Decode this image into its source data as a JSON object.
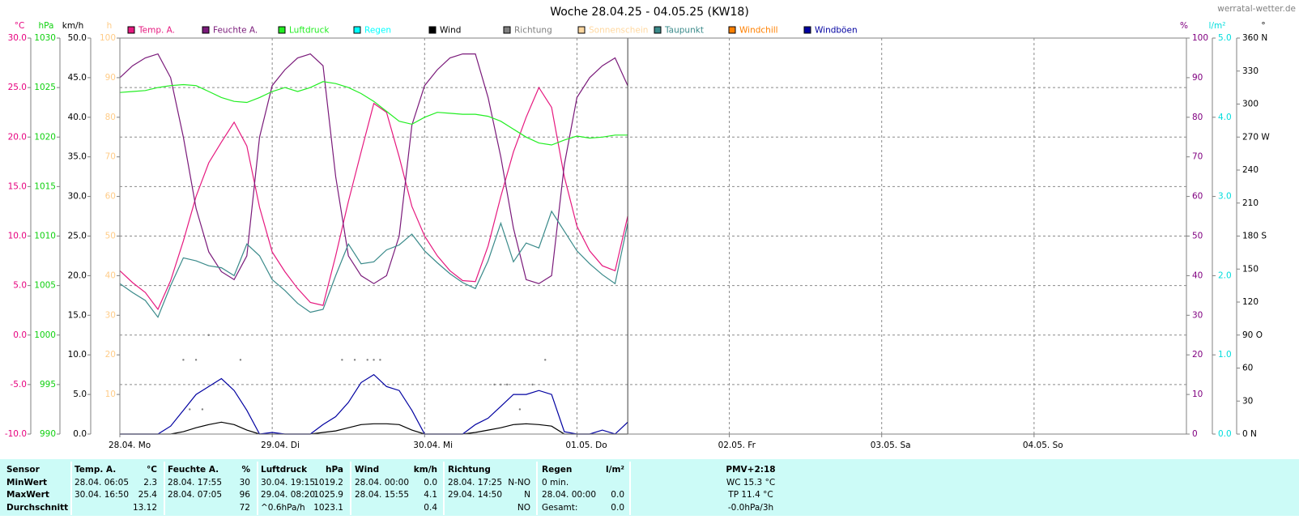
{
  "header": {
    "title": "Woche 28.04.25 - 04.05.25 (KW18)",
    "site": "werratal-wetter.de"
  },
  "chart_data": {
    "type": "line",
    "grid": true,
    "xlim": [
      0,
      168
    ],
    "xticks": [
      {
        "value": 0,
        "label": "28.04.  Mo"
      },
      {
        "value": 24,
        "label": "29.04.  Di"
      },
      {
        "value": 48,
        "label": "30.04.  Mi"
      },
      {
        "value": 72,
        "label": "01.05.  Do"
      },
      {
        "value": 96,
        "label": "02.05.  Fr"
      },
      {
        "value": 120,
        "label": "03.05.  Sa"
      },
      {
        "value": 144,
        "label": "04.05.  So"
      }
    ],
    "axes": [
      {
        "label": "°C",
        "color": "#e6007e",
        "lim": [
          -10,
          30
        ],
        "ticks": [
          {
            "value": 30,
            "label": "30.0"
          },
          {
            "value": 25,
            "label": "25.0"
          },
          {
            "value": 20,
            "label": "20.0"
          },
          {
            "value": 15,
            "label": "15.0"
          },
          {
            "value": 10,
            "label": "10.0"
          },
          {
            "value": 5,
            "label": "5.0"
          },
          {
            "value": 0,
            "label": "0.0"
          },
          {
            "value": -5,
            "label": "-5.0"
          },
          {
            "value": -10,
            "label": "-10.0"
          }
        ]
      },
      {
        "label": "hPa",
        "color": "#10d010",
        "lim": [
          990,
          1030
        ],
        "ticks": [
          1030,
          1025,
          1020,
          1015,
          1010,
          1005,
          1000,
          995,
          990
        ]
      },
      {
        "label": "km/h",
        "color": "#000000",
        "lim": [
          0,
          50
        ],
        "ticks": [
          {
            "value": 50,
            "label": "50.0"
          },
          {
            "value": 45,
            "label": "45.0"
          },
          {
            "value": 40,
            "label": "40.0"
          },
          {
            "value": 35,
            "label": "35.0"
          },
          {
            "value": 30,
            "label": "30.0"
          },
          {
            "value": 25,
            "label": "25.0"
          },
          {
            "value": 20,
            "label": "20.0"
          },
          {
            "value": 15,
            "label": "15.0"
          },
          {
            "value": 10,
            "label": "10.0"
          },
          {
            "value": 5,
            "label": "5.0"
          },
          {
            "value": 0,
            "label": "0.0"
          }
        ]
      },
      {
        "label": "h",
        "color": "#ffcc88",
        "lim": [
          0,
          100
        ],
        "ticks": [
          100,
          90,
          80,
          70,
          60,
          50,
          40,
          30,
          20,
          10
        ]
      },
      {
        "label": "%",
        "color": "#800080",
        "lim": [
          0,
          100
        ],
        "ticks": [
          100,
          90,
          80,
          70,
          60,
          50,
          40,
          30,
          20,
          10,
          0
        ]
      },
      {
        "label": "l/m²",
        "color": "#00dddd",
        "lim": [
          0,
          5
        ],
        "ticks": [
          {
            "value": 5,
            "label": "5.0"
          },
          {
            "value": 4,
            "label": "4.0"
          },
          {
            "value": 3,
            "label": "3.0"
          },
          {
            "value": 2,
            "label": "2.0"
          },
          {
            "value": 1,
            "label": "1.0"
          },
          {
            "value": 0,
            "label": "0.0"
          }
        ]
      },
      {
        "label": "°",
        "color": "#000000",
        "lim": [
          0,
          360
        ],
        "ticks": [
          {
            "value": 360,
            "label": "360 N"
          },
          330,
          300,
          {
            "value": 270,
            "label": "270 W"
          },
          240,
          210,
          {
            "value": 180,
            "label": "180 S"
          },
          150,
          120,
          {
            "value": 90,
            "label": "90 O"
          },
          60,
          30,
          {
            "value": 0,
            "label": "0 N"
          }
        ]
      }
    ],
    "x": [
      0,
      2,
      4,
      6,
      8,
      10,
      12,
      14,
      16,
      18,
      20,
      22,
      24,
      26,
      28,
      30,
      32,
      34,
      36,
      38,
      40,
      42,
      44,
      46,
      48,
      50,
      52,
      54,
      56,
      58,
      60,
      62,
      64,
      66,
      68,
      70,
      72,
      74,
      76,
      78,
      80
    ],
    "series": [
      {
        "name": "Temp. A.",
        "color": "#e6197f",
        "axis": "°C",
        "values": [
          6.5,
          5.3,
          4.3,
          2.6,
          5.5,
          9.5,
          14.0,
          17.4,
          19.5,
          21.5,
          19.1,
          12.9,
          8.4,
          6.4,
          4.7,
          3.3,
          3.0,
          8.0,
          13.5,
          18.5,
          23.4,
          22.5,
          18.0,
          13.0,
          10.0,
          8.0,
          6.5,
          5.5,
          5.4,
          9.0,
          14.0,
          18.5,
          22.0,
          25.0,
          23.0,
          16.0,
          11.0,
          8.5,
          7.0,
          6.5,
          12.0
        ]
      },
      {
        "name": "Feuchte A.",
        "color": "#7a1a7a",
        "axis": "%",
        "values": [
          90,
          93,
          95,
          96,
          90,
          75,
          57,
          46,
          41,
          39,
          45,
          75,
          88,
          92,
          95,
          96,
          93,
          65,
          45,
          40,
          38,
          40,
          50,
          78,
          88,
          92,
          95,
          96,
          96,
          85,
          70,
          52,
          39,
          38,
          40,
          68,
          85,
          90,
          93,
          95,
          88
        ]
      },
      {
        "name": "Luftdruck",
        "color": "#22ee22",
        "axis": "hPa",
        "values": [
          1024.5,
          1024.6,
          1024.7,
          1025.0,
          1025.2,
          1025.3,
          1025.2,
          1024.6,
          1024.0,
          1023.6,
          1023.5,
          1024.0,
          1024.6,
          1025.0,
          1024.6,
          1025.0,
          1025.6,
          1025.4,
          1025.0,
          1024.4,
          1023.6,
          1022.6,
          1021.6,
          1021.3,
          1022.0,
          1022.5,
          1022.4,
          1022.3,
          1022.3,
          1022.1,
          1021.6,
          1020.8,
          1020.0,
          1019.4,
          1019.2,
          1019.7,
          1020.1,
          1019.9,
          1020.0,
          1020.2,
          1020.2
        ]
      },
      {
        "name": "Regen",
        "color": "#00ffff",
        "axis": "l/m²"
      },
      {
        "name": "Wind",
        "color": "#000000",
        "axis": "km/h",
        "values": [
          0,
          0,
          0,
          0,
          0,
          0.3,
          0.8,
          1.2,
          1.5,
          1.2,
          0.5,
          0,
          0,
          0,
          0,
          0,
          0.2,
          0.4,
          0.8,
          1.2,
          1.3,
          1.3,
          1.2,
          0.5,
          0,
          0,
          0,
          0,
          0.2,
          0.5,
          0.8,
          1.2,
          1.3,
          1.2,
          1.0,
          0,
          0,
          0,
          0,
          0,
          0
        ]
      },
      {
        "name": "Richtung",
        "color": "#808080",
        "axis": "°",
        "x": [
          10,
          11,
          12,
          13,
          14,
          19,
          35,
          37,
          39,
          40,
          41,
          59,
          60,
          61,
          63,
          65,
          67
        ],
        "values": [
          67.5,
          22.5,
          67.5,
          22.5,
          90,
          67.5,
          67.5,
          67.5,
          67.5,
          67.5,
          67.5,
          45,
          45,
          45,
          22.5,
          45,
          67.5
        ]
      },
      {
        "name": "Sonnenschein",
        "color": "#ffd8a0",
        "axis": "h"
      },
      {
        "name": "Taupunkt",
        "color": "#3a8a8a",
        "axis": "°C",
        "values": [
          5.2,
          4.3,
          3.5,
          1.8,
          5.0,
          7.8,
          7.5,
          7.0,
          6.8,
          6.0,
          9.2,
          8.0,
          5.6,
          4.5,
          3.2,
          2.3,
          2.6,
          6.0,
          9.2,
          7.2,
          7.4,
          8.6,
          9.1,
          10.2,
          8.5,
          7.3,
          6.2,
          5.3,
          4.7,
          7.5,
          11.3,
          7.4,
          9.3,
          8.8,
          12.5,
          10.5,
          8.5,
          7.2,
          6.1,
          5.2,
          11.3
        ]
      },
      {
        "name": "Windchill",
        "color": "#ff8000",
        "axis": "°C"
      },
      {
        "name": "Windböen",
        "color": "#0000a0",
        "axis": "km/h",
        "values": [
          0,
          0,
          0,
          0,
          1,
          3,
          5,
          6,
          7,
          5.5,
          3,
          0,
          0.2,
          0,
          0,
          0,
          1.2,
          2.2,
          4,
          6.5,
          7.5,
          6,
          5.5,
          3,
          0,
          0,
          0,
          0,
          1.2,
          2,
          3.5,
          5,
          5,
          5.5,
          5,
          0.3,
          0,
          0,
          0.5,
          0,
          1.5
        ]
      }
    ]
  },
  "stats": {
    "row_labels": [
      "Sensor",
      "MinWert",
      "MaxWert",
      "Durchschnitt"
    ],
    "columns": [
      {
        "title": "Temp. A.",
        "unit": "°C",
        "cells": [
          [
            "28.04.  06:05",
            "2.3"
          ],
          [
            "30.04.  16:50",
            "25.4"
          ],
          [
            null,
            "13.12"
          ]
        ]
      },
      {
        "title": "Feuchte A.",
        "unit": "%",
        "cells": [
          [
            "28.04.  17:55",
            "30"
          ],
          [
            "28.04.  07:05",
            "96"
          ],
          [
            null,
            "72"
          ]
        ]
      },
      {
        "title": "Luftdruck",
        "unit": "hPa",
        "cells": [
          [
            "30.04.  19:15",
            "1019.2"
          ],
          [
            "29.04.  08:20",
            "1025.9"
          ],
          [
            "^0.6hPa/h",
            "1023.1"
          ]
        ]
      },
      {
        "title": "Wind",
        "unit": "km/h",
        "cells": [
          [
            "28.04.  00:00",
            "0.0"
          ],
          [
            "28.04.  15:55",
            "4.1"
          ],
          [
            null,
            "0.4"
          ]
        ]
      },
      {
        "title": "Richtung",
        "unit": null,
        "cells": [
          [
            "28.04.  17:25",
            "N-NO"
          ],
          [
            "29.04.  14:50",
            "N"
          ],
          [
            null,
            "NO"
          ]
        ]
      },
      {
        "title": "Regen",
        "unit": "l/m²",
        "cells": [
          [
            "0 min.",
            null
          ],
          [
            "28.04.  00:00",
            "0.0"
          ],
          [
            "Gesamt:",
            "0.0"
          ]
        ]
      }
    ],
    "pmv": {
      "title": "PMV+2:18",
      "lines": [
        "WC 15.3 °C",
        "TP 11.4 °C",
        "-0.0hPa/3h"
      ]
    }
  }
}
